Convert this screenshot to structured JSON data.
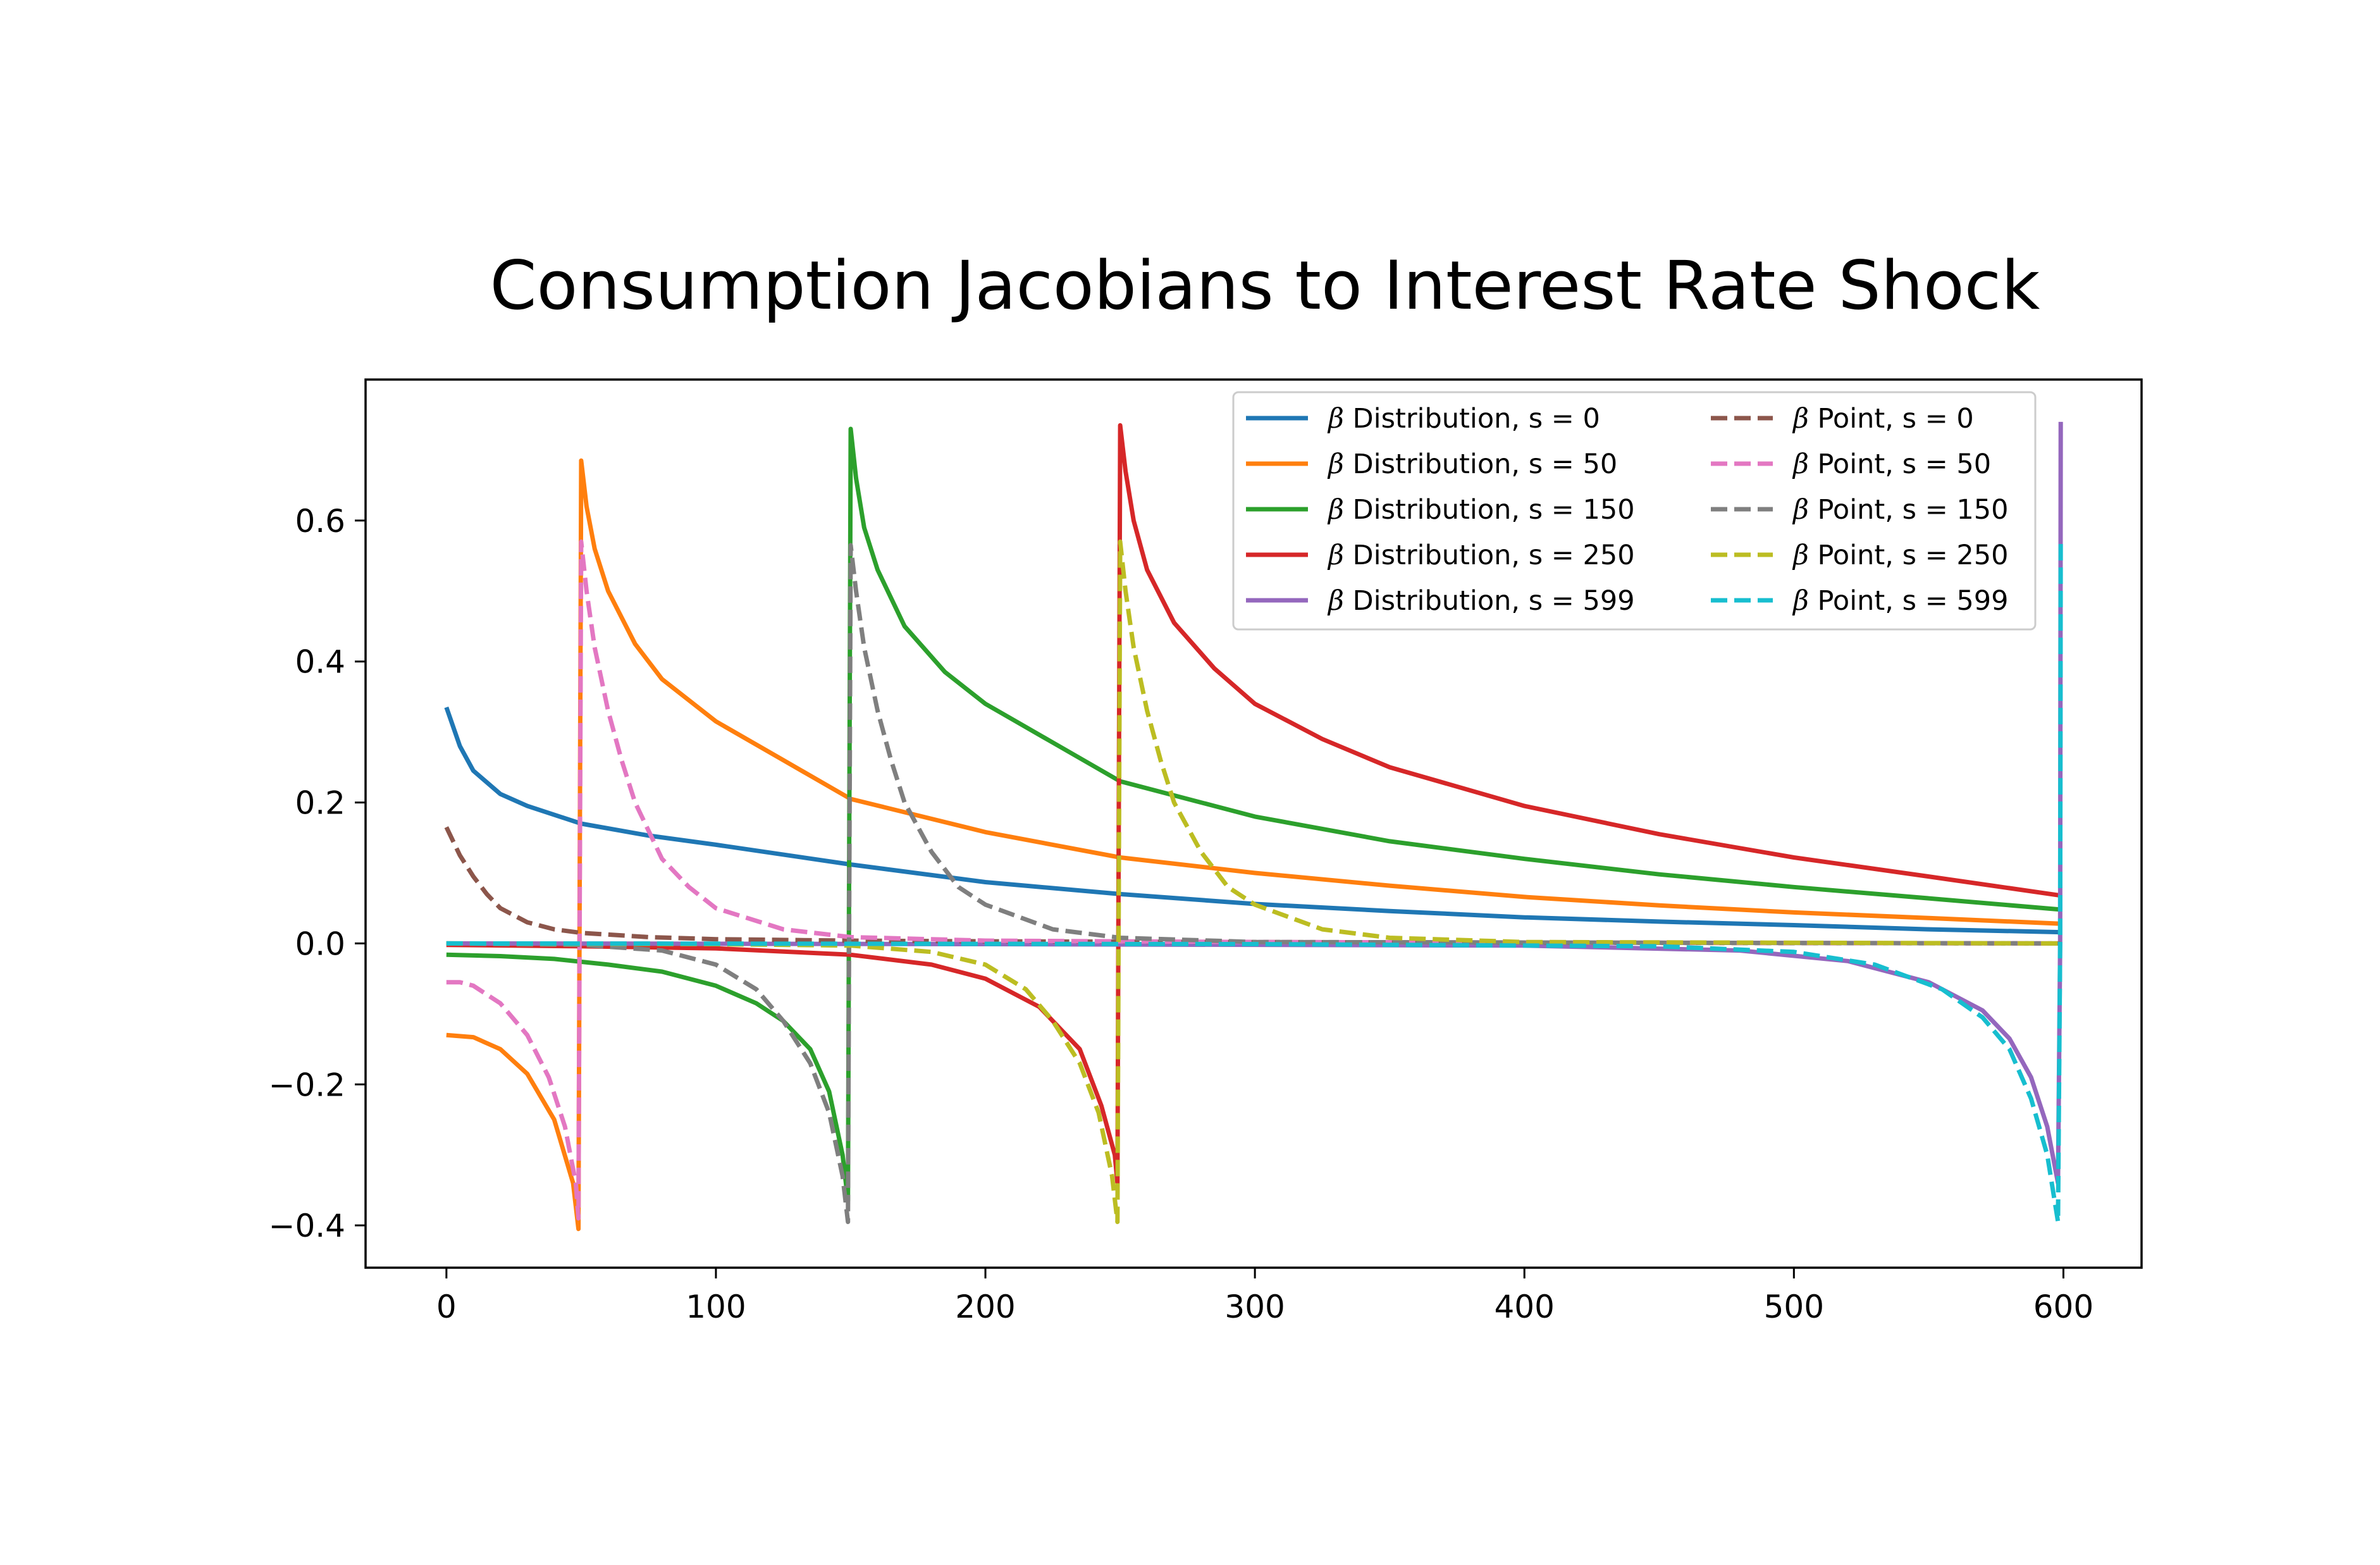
{
  "chart_data": {
    "type": "line",
    "title": "Consumption Jacobians to Interest Rate Shock",
    "xlabel": "",
    "ylabel": "",
    "xlim": [
      -30,
      629
    ],
    "ylim": [
      -0.46,
      0.8
    ],
    "xticks": [
      0,
      100,
      200,
      300,
      400,
      500,
      600
    ],
    "yticks": [
      -0.4,
      -0.2,
      0.0,
      0.2,
      0.4,
      0.6
    ],
    "xtick_labels": [
      "0",
      "100",
      "200",
      "300",
      "400",
      "500",
      "600"
    ],
    "ytick_labels": [
      "−0.4",
      "−0.2",
      "0.0",
      "0.2",
      "0.4",
      "0.6"
    ],
    "grid": false,
    "legend": {
      "position": "top-right",
      "columns": 2
    },
    "series": [
      {
        "name": "β Distribution, s = 0",
        "greek": "β",
        "rest": " Distribution, s = 0",
        "color": "#1f77b4",
        "dash": false,
        "points": [
          [
            0,
            0.335
          ],
          [
            5,
            0.28
          ],
          [
            10,
            0.245
          ],
          [
            20,
            0.212
          ],
          [
            30,
            0.195
          ],
          [
            50,
            0.17
          ],
          [
            75,
            0.153
          ],
          [
            100,
            0.14
          ],
          [
            150,
            0.112
          ],
          [
            200,
            0.087
          ],
          [
            250,
            0.07
          ],
          [
            300,
            0.056
          ],
          [
            350,
            0.046
          ],
          [
            400,
            0.037
          ],
          [
            450,
            0.031
          ],
          [
            500,
            0.026
          ],
          [
            550,
            0.02
          ],
          [
            599,
            0.016
          ]
        ]
      },
      {
        "name": "β Distribution, s = 50",
        "greek": "β",
        "rest": " Distribution, s = 50",
        "color": "#ff7f0e",
        "dash": false,
        "points": [
          [
            0,
            -0.13
          ],
          [
            10,
            -0.133
          ],
          [
            20,
            -0.15
          ],
          [
            30,
            -0.185
          ],
          [
            40,
            -0.25
          ],
          [
            47,
            -0.34
          ],
          [
            49,
            -0.405
          ],
          [
            50,
            0.685
          ],
          [
            52,
            0.62
          ],
          [
            55,
            0.56
          ],
          [
            60,
            0.5
          ],
          [
            70,
            0.425
          ],
          [
            80,
            0.375
          ],
          [
            100,
            0.315
          ],
          [
            125,
            0.26
          ],
          [
            150,
            0.205
          ],
          [
            200,
            0.158
          ],
          [
            250,
            0.122
          ],
          [
            300,
            0.1
          ],
          [
            350,
            0.082
          ],
          [
            400,
            0.066
          ],
          [
            450,
            0.054
          ],
          [
            500,
            0.044
          ],
          [
            550,
            0.036
          ],
          [
            599,
            0.028
          ]
        ]
      },
      {
        "name": "β Distribution, s = 150",
        "greek": "β",
        "rest": " Distribution, s = 150",
        "color": "#2ca02c",
        "dash": false,
        "points": [
          [
            0,
            -0.016
          ],
          [
            20,
            -0.018
          ],
          [
            40,
            -0.022
          ],
          [
            60,
            -0.03
          ],
          [
            80,
            -0.04
          ],
          [
            100,
            -0.06
          ],
          [
            115,
            -0.085
          ],
          [
            125,
            -0.11
          ],
          [
            135,
            -0.15
          ],
          [
            142,
            -0.21
          ],
          [
            147,
            -0.3
          ],
          [
            149,
            -0.365
          ],
          [
            150,
            0.73
          ],
          [
            152,
            0.66
          ],
          [
            155,
            0.59
          ],
          [
            160,
            0.53
          ],
          [
            170,
            0.45
          ],
          [
            185,
            0.385
          ],
          [
            200,
            0.34
          ],
          [
            225,
            0.285
          ],
          [
            250,
            0.23
          ],
          [
            300,
            0.18
          ],
          [
            350,
            0.145
          ],
          [
            400,
            0.12
          ],
          [
            450,
            0.098
          ],
          [
            500,
            0.08
          ],
          [
            550,
            0.064
          ],
          [
            599,
            0.048
          ]
        ]
      },
      {
        "name": "β Distribution, s = 250",
        "greek": "β",
        "rest": " Distribution, s = 250",
        "color": "#d62728",
        "dash": false,
        "points": [
          [
            0,
            -0.002
          ],
          [
            50,
            -0.004
          ],
          [
            100,
            -0.007
          ],
          [
            150,
            -0.016
          ],
          [
            180,
            -0.03
          ],
          [
            200,
            -0.05
          ],
          [
            220,
            -0.09
          ],
          [
            235,
            -0.15
          ],
          [
            243,
            -0.23
          ],
          [
            248,
            -0.3
          ],
          [
            249,
            -0.34
          ],
          [
            250,
            0.735
          ],
          [
            252,
            0.67
          ],
          [
            255,
            0.6
          ],
          [
            260,
            0.53
          ],
          [
            270,
            0.455
          ],
          [
            285,
            0.39
          ],
          [
            300,
            0.34
          ],
          [
            325,
            0.29
          ],
          [
            350,
            0.25
          ],
          [
            400,
            0.195
          ],
          [
            450,
            0.155
          ],
          [
            500,
            0.122
          ],
          [
            550,
            0.095
          ],
          [
            599,
            0.068
          ]
        ]
      },
      {
        "name": "β Distribution, s = 599",
        "greek": "β",
        "rest": " Distribution, s = 599",
        "color": "#9467bd",
        "dash": false,
        "points": [
          [
            0,
            0.0
          ],
          [
            200,
            -0.001
          ],
          [
            400,
            -0.003
          ],
          [
            480,
            -0.01
          ],
          [
            520,
            -0.025
          ],
          [
            550,
            -0.055
          ],
          [
            570,
            -0.095
          ],
          [
            580,
            -0.135
          ],
          [
            588,
            -0.19
          ],
          [
            594,
            -0.26
          ],
          [
            598,
            -0.34
          ],
          [
            598.8,
            0.0
          ],
          [
            599,
            0.74
          ]
        ]
      },
      {
        "name": "β Point, s = 0",
        "greek": "β",
        "rest": " Point, s = 0",
        "color": "#8c564b",
        "dash": true,
        "points": [
          [
            0,
            0.165
          ],
          [
            5,
            0.125
          ],
          [
            10,
            0.095
          ],
          [
            15,
            0.07
          ],
          [
            20,
            0.05
          ],
          [
            30,
            0.03
          ],
          [
            40,
            0.02
          ],
          [
            50,
            0.015
          ],
          [
            75,
            0.009
          ],
          [
            100,
            0.006
          ],
          [
            150,
            0.004
          ],
          [
            200,
            0.003
          ],
          [
            300,
            0.002
          ],
          [
            400,
            0.001
          ],
          [
            599,
            0.0
          ]
        ]
      },
      {
        "name": "β Point, s = 50",
        "greek": "β",
        "rest": " Point, s = 50",
        "color": "#e377c2",
        "dash": true,
        "points": [
          [
            0,
            -0.055
          ],
          [
            5,
            -0.055
          ],
          [
            10,
            -0.06
          ],
          [
            20,
            -0.085
          ],
          [
            30,
            -0.13
          ],
          [
            38,
            -0.19
          ],
          [
            44,
            -0.26
          ],
          [
            48,
            -0.34
          ],
          [
            49,
            -0.39
          ],
          [
            50,
            0.57
          ],
          [
            52,
            0.5
          ],
          [
            55,
            0.42
          ],
          [
            60,
            0.33
          ],
          [
            65,
            0.26
          ],
          [
            70,
            0.2
          ],
          [
            80,
            0.12
          ],
          [
            90,
            0.08
          ],
          [
            100,
            0.05
          ],
          [
            125,
            0.02
          ],
          [
            150,
            0.009
          ],
          [
            200,
            0.004
          ],
          [
            300,
            0.002
          ],
          [
            599,
            0.0
          ]
        ]
      },
      {
        "name": "β Point, s = 150",
        "greek": "β",
        "rest": " Point, s = 150",
        "color": "#7f7f7f",
        "dash": true,
        "points": [
          [
            0,
            0.0
          ],
          [
            50,
            -0.002
          ],
          [
            80,
            -0.01
          ],
          [
            100,
            -0.03
          ],
          [
            115,
            -0.065
          ],
          [
            125,
            -0.11
          ],
          [
            135,
            -0.17
          ],
          [
            142,
            -0.24
          ],
          [
            147,
            -0.33
          ],
          [
            149,
            -0.395
          ],
          [
            150,
            0.565
          ],
          [
            152,
            0.5
          ],
          [
            155,
            0.42
          ],
          [
            160,
            0.33
          ],
          [
            165,
            0.26
          ],
          [
            170,
            0.2
          ],
          [
            180,
            0.13
          ],
          [
            190,
            0.08
          ],
          [
            200,
            0.055
          ],
          [
            225,
            0.02
          ],
          [
            250,
            0.008
          ],
          [
            300,
            0.002
          ],
          [
            599,
            0.0
          ]
        ]
      },
      {
        "name": "β Point, s = 250",
        "greek": "β",
        "rest": " Point, s = 250",
        "color": "#bcbd22",
        "dash": true,
        "points": [
          [
            0,
            0.0
          ],
          [
            100,
            -0.001
          ],
          [
            150,
            -0.003
          ],
          [
            180,
            -0.012
          ],
          [
            200,
            -0.03
          ],
          [
            215,
            -0.065
          ],
          [
            225,
            -0.11
          ],
          [
            235,
            -0.17
          ],
          [
            242,
            -0.24
          ],
          [
            247,
            -0.33
          ],
          [
            249,
            -0.395
          ],
          [
            250,
            0.57
          ],
          [
            252,
            0.5
          ],
          [
            255,
            0.42
          ],
          [
            260,
            0.33
          ],
          [
            265,
            0.26
          ],
          [
            270,
            0.2
          ],
          [
            280,
            0.13
          ],
          [
            290,
            0.08
          ],
          [
            300,
            0.055
          ],
          [
            325,
            0.02
          ],
          [
            350,
            0.008
          ],
          [
            400,
            0.002
          ],
          [
            599,
            0.0
          ]
        ]
      },
      {
        "name": "β Point, s = 599",
        "greek": "β",
        "rest": " Point, s = 599",
        "color": "#17becf",
        "dash": true,
        "points": [
          [
            0,
            0.0
          ],
          [
            300,
            -0.001
          ],
          [
            450,
            -0.004
          ],
          [
            500,
            -0.012
          ],
          [
            530,
            -0.03
          ],
          [
            555,
            -0.065
          ],
          [
            570,
            -0.105
          ],
          [
            580,
            -0.15
          ],
          [
            588,
            -0.22
          ],
          [
            594,
            -0.3
          ],
          [
            598,
            -0.395
          ],
          [
            598.8,
            0.0
          ],
          [
            599,
            0.57
          ]
        ]
      }
    ]
  }
}
